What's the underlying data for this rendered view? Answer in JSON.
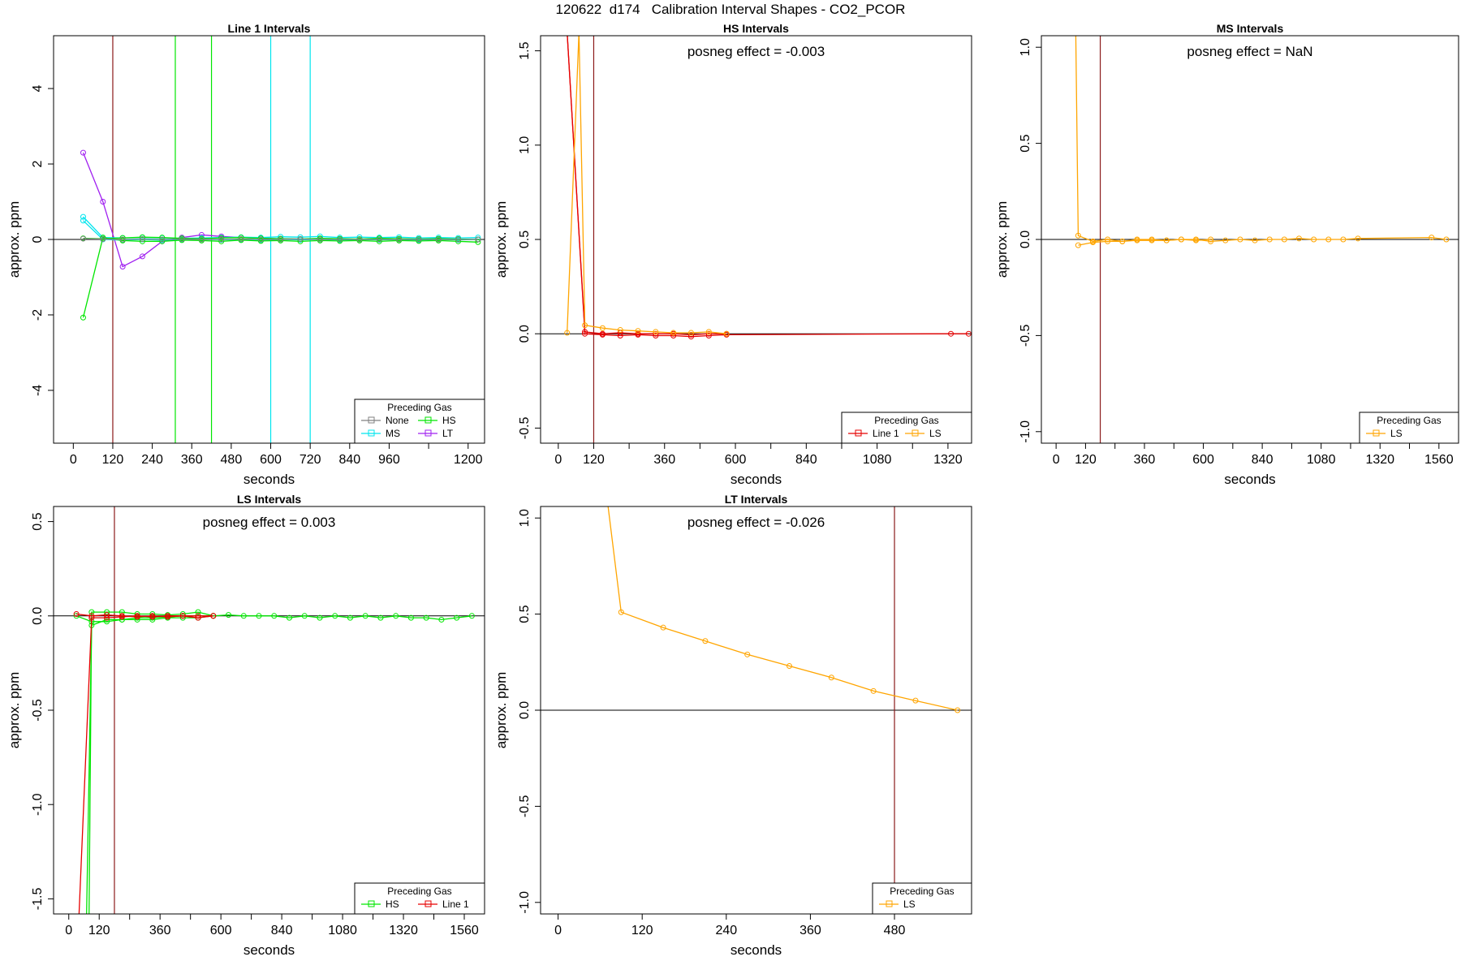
{
  "page_title": "120622  d174   Calibration Interval Shapes - CO2_PCOR",
  "colors": {
    "None": "#808080",
    "HS": "#00e600",
    "MS": "#00e5ee",
    "LT": "#a020f0",
    "LS": "#ffa500",
    "Line 1": "#e60000",
    "divider": "#8b1a1a",
    "zero_line": "#000000"
  },
  "chart_data": [
    {
      "type": "line",
      "title": "Line 1 Intervals",
      "subtitle": "",
      "xlabel": "seconds",
      "ylabel": "approx. ppm",
      "xlim": [
        -60,
        1250
      ],
      "ylim": [
        -5.4,
        5.4
      ],
      "xticks": [
        0,
        120,
        240,
        360,
        480,
        600,
        720,
        840,
        960,
        1200
      ],
      "xtick_labels": [
        "0",
        "120",
        "240",
        "360",
        "480",
        "600",
        "720",
        "840",
        "960",
        "1200"
      ],
      "xticks_minor": [
        1080
      ],
      "yticks": [
        -4,
        -2,
        0,
        2,
        4
      ],
      "ytick_labels": [
        "-4",
        "-2",
        "0",
        "2",
        "4"
      ],
      "zero_line": true,
      "legend": {
        "title": "Preceding Gas",
        "position": "bottom-right",
        "entries": [
          {
            "name": "None",
            "color": "#808080"
          },
          {
            "name": "HS",
            "color": "#00e600"
          },
          {
            "name": "MS",
            "color": "#00e5ee"
          },
          {
            "name": "LT",
            "color": "#a020f0"
          }
        ]
      },
      "vlines": [
        {
          "x": 120,
          "color": "#8b1a1a"
        },
        {
          "x": 310,
          "color": "#00e600"
        },
        {
          "x": 420,
          "color": "#00e600"
        },
        {
          "x": 600,
          "color": "#00e5ee"
        },
        {
          "x": 720,
          "color": "#00e5ee"
        }
      ],
      "series": [
        {
          "name": "LT",
          "color": "#a020f0",
          "x": [
            30,
            90,
            150,
            210,
            270,
            330,
            390,
            450,
            510,
            570,
            630,
            690,
            750,
            810,
            870,
            930,
            990,
            1050,
            1110,
            1170,
            1230
          ],
          "y": [
            2.3,
            1.0,
            -0.72,
            -0.45,
            -0.05,
            0.05,
            0.12,
            0.08,
            0.05,
            0.03,
            0.02,
            0.01,
            0.0,
            0.0,
            0.0,
            0.0,
            0.0,
            0.0,
            0.0,
            0.0,
            0.0
          ]
        },
        {
          "name": "MS",
          "color": "#00e5ee",
          "x": [
            30,
            90,
            150,
            210,
            270,
            330,
            390,
            450,
            510,
            570,
            630,
            690,
            750,
            810,
            870,
            930,
            990,
            1050,
            1110,
            1170,
            1230
          ],
          "y": [
            0.6,
            0.05,
            0.04,
            0.05,
            0.04,
            0.03,
            0.04,
            0.05,
            0.06,
            0.05,
            0.07,
            0.06,
            0.08,
            0.05,
            0.06,
            0.05,
            0.06,
            0.04,
            0.05,
            0.04,
            0.05
          ]
        },
        {
          "name": "MS",
          "color": "#00e5ee",
          "x": [
            30,
            90,
            150,
            210,
            270,
            330,
            390,
            450,
            510,
            570,
            630,
            690,
            750,
            810,
            870,
            930,
            990,
            1050,
            1110,
            1170,
            1230
          ],
          "y": [
            0.5,
            0.0,
            -0.02,
            0.0,
            -0.02,
            0.0,
            0.0,
            -0.01,
            0.0,
            -0.02,
            0.0,
            -0.01,
            0.0,
            -0.02,
            0.0,
            -0.01,
            0.0,
            -0.02,
            0.0,
            -0.01,
            0.0
          ]
        },
        {
          "name": "HS",
          "color": "#00e600",
          "x": [
            30,
            90,
            150,
            210,
            270,
            330,
            390,
            450,
            510,
            570,
            630,
            690,
            750,
            810,
            870,
            930,
            990,
            1050,
            1110,
            1170,
            1230
          ],
          "y": [
            -2.07,
            0.05,
            -0.03,
            -0.05,
            -0.05,
            -0.02,
            -0.03,
            -0.05,
            -0.02,
            -0.04,
            -0.03,
            -0.05,
            -0.03,
            -0.04,
            -0.03,
            -0.05,
            -0.03,
            -0.04,
            -0.03,
            -0.05,
            -0.07
          ]
        },
        {
          "name": "HS",
          "color": "#00e600",
          "x": [
            30,
            90,
            150,
            210,
            270,
            330,
            390,
            450,
            510,
            570,
            630,
            690,
            750,
            810,
            870,
            930,
            990,
            1050,
            1110,
            1170,
            1230
          ],
          "y": [
            0.03,
            0.02,
            0.04,
            0.06,
            0.05,
            0.03,
            0.02,
            0.04,
            0.05,
            0.03,
            0.02,
            0.01,
            0.03,
            0.02,
            0.01,
            0.03,
            0.02,
            0.01,
            0.02,
            0.01,
            0.0
          ]
        },
        {
          "name": "None",
          "color": "#808080",
          "x": [
            30,
            90,
            150,
            210,
            270,
            330,
            390,
            450,
            510,
            570,
            630,
            690,
            750,
            810,
            870,
            930,
            990,
            1050,
            1110,
            1170,
            1230
          ],
          "y": [
            0.02,
            0.01,
            0.0,
            0.01,
            0.0,
            0.01,
            0.0,
            0.0,
            0.01,
            0.0,
            0.0,
            0.01,
            0.0,
            0.0,
            0.0,
            0.0,
            0.0,
            0.0,
            0.0,
            0.0,
            0.0
          ]
        }
      ]
    },
    {
      "type": "line",
      "title": "HS Intervals",
      "subtitle": "posneg effect = -0.003",
      "xlabel": "seconds",
      "ylabel": "approx. ppm",
      "xlim": [
        -60,
        1400
      ],
      "ylim": [
        -0.58,
        1.58
      ],
      "xticks": [
        0,
        120,
        360,
        600,
        840,
        1080,
        1320
      ],
      "xtick_labels": [
        "0",
        "120",
        "360",
        "600",
        "840",
        "1080",
        "1320"
      ],
      "xticks_minor": [
        240,
        480,
        720,
        960,
        1200
      ],
      "yticks": [
        -0.5,
        0.0,
        0.5,
        1.0,
        1.5
      ],
      "ytick_labels": [
        "-0.5",
        "0.0",
        "0.5",
        "1.0",
        "1.5"
      ],
      "zero_line": true,
      "legend": {
        "title": "Preceding Gas",
        "position": "bottom-right",
        "entries": [
          {
            "name": "Line 1",
            "color": "#e60000"
          },
          {
            "name": "LS",
            "color": "#ffa500"
          }
        ]
      },
      "vlines": [
        {
          "x": 120,
          "color": "#8b1a1a"
        }
      ],
      "series": [
        {
          "name": "Line 1",
          "color": "#e60000",
          "x": [
            30,
            90,
            150,
            210,
            270,
            330,
            390,
            450,
            510,
            570,
            1330,
            1390
          ],
          "y": [
            1.6,
            0.0,
            -0.005,
            -0.01,
            -0.005,
            -0.01,
            -0.01,
            -0.015,
            -0.01,
            -0.005,
            0.0,
            0.0
          ]
        },
        {
          "name": "Line 1",
          "color": "#e60000",
          "x": [
            30,
            90,
            150,
            210,
            270,
            330,
            390,
            450,
            510,
            570
          ],
          "y": [
            1.6,
            0.01,
            0.0,
            0.005,
            0.0,
            0.0,
            0.0,
            -0.005,
            0.0,
            0.0
          ]
        },
        {
          "name": "LS",
          "color": "#ffa500",
          "x": [
            30,
            70,
            90,
            150,
            210,
            270,
            330,
            390,
            450,
            510,
            570
          ],
          "y": [
            0.005,
            1.6,
            0.045,
            0.03,
            0.02,
            0.015,
            0.01,
            0.005,
            0.005,
            0.01,
            0.0
          ]
        }
      ]
    },
    {
      "type": "line",
      "title": "MS Intervals",
      "subtitle": "posneg effect = NaN",
      "xlabel": "seconds",
      "ylabel": "approx. ppm",
      "xlim": [
        -60,
        1640
      ],
      "ylim": [
        -1.06,
        1.06
      ],
      "xticks": [
        0,
        120,
        360,
        600,
        840,
        1080,
        1320,
        1560
      ],
      "xtick_labels": [
        "0",
        "120",
        "360",
        "600",
        "840",
        "1080",
        "1320",
        "1560"
      ],
      "xticks_minor": [
        240,
        480,
        720,
        960,
        1200,
        1440
      ],
      "yticks": [
        -1.0,
        -0.5,
        0.0,
        0.5,
        1.0
      ],
      "ytick_labels": [
        "-1.0",
        "-0.5",
        "0.0",
        "0.5",
        "1.0"
      ],
      "zero_line": true,
      "legend": {
        "title": "Preceding Gas",
        "position": "bottom-right",
        "entries": [
          {
            "name": "LS",
            "color": "#ffa500"
          }
        ]
      },
      "vlines": [
        {
          "x": 180,
          "color": "#8b1a1a"
        }
      ],
      "series": [
        {
          "name": "LS",
          "color": "#ffa500",
          "x": [
            80,
            90,
            150,
            210,
            270,
            330,
            390,
            450,
            510,
            570,
            630,
            690,
            750,
            810,
            870,
            930,
            990,
            1050,
            1110,
            1170,
            1230,
            1530,
            1590
          ],
          "y": [
            1.1,
            0.02,
            -0.01,
            0.0,
            -0.01,
            0.0,
            0.0,
            -0.005,
            0.0,
            0.0,
            -0.01,
            -0.005,
            0.0,
            -0.005,
            0.0,
            0.0,
            0.005,
            0.0,
            0.0,
            0.0,
            0.005,
            0.01,
            0.0
          ]
        },
        {
          "name": "LS",
          "color": "#ffa500",
          "x": [
            90,
            150,
            210,
            270,
            330,
            390,
            450,
            510,
            570,
            630
          ],
          "y": [
            -0.03,
            -0.015,
            -0.01,
            -0.01,
            -0.005,
            -0.005,
            -0.005,
            0.0,
            -0.005,
            0.0
          ]
        }
      ]
    },
    {
      "type": "line",
      "title": "LS Intervals",
      "subtitle": "posneg effect = 0.003",
      "xlabel": "seconds",
      "ylabel": "approx. ppm",
      "xlim": [
        -60,
        1640
      ],
      "ylim": [
        -1.58,
        0.58
      ],
      "xticks": [
        0,
        120,
        360,
        600,
        840,
        1080,
        1320,
        1560
      ],
      "xtick_labels": [
        "0",
        "120",
        "360",
        "600",
        "840",
        "1080",
        "1320",
        "1560"
      ],
      "xticks_minor": [
        240,
        480,
        720,
        960,
        1200,
        1440
      ],
      "yticks": [
        -1.5,
        -1.0,
        -0.5,
        0.0,
        0.5
      ],
      "ytick_labels": [
        "-1.5",
        "-1.0",
        "-0.5",
        "0.0",
        "0.5"
      ],
      "zero_line": true,
      "legend": {
        "title": "Preceding Gas",
        "position": "bottom-right",
        "entries": [
          {
            "name": "HS",
            "color": "#00e600"
          },
          {
            "name": "Line 1",
            "color": "#e60000"
          }
        ]
      },
      "vlines": [
        {
          "x": 180,
          "color": "#8b1a1a"
        }
      ],
      "series": [
        {
          "name": "HS",
          "color": "#00e600",
          "x": [
            70,
            90,
            150,
            210,
            270,
            330,
            390,
            450,
            510,
            570,
            630,
            690,
            750,
            810,
            870,
            930,
            990,
            1050,
            1110,
            1170,
            1230,
            1290,
            1350,
            1410,
            1470,
            1530,
            1590
          ],
          "y": [
            -1.6,
            -0.05,
            -0.02,
            -0.02,
            -0.01,
            -0.01,
            -0.005,
            0.0,
            0.0,
            0.0,
            0.005,
            0.0,
            0.0,
            0.0,
            -0.01,
            0.0,
            -0.01,
            0.0,
            -0.01,
            0.0,
            -0.01,
            0.0,
            -0.01,
            -0.01,
            -0.02,
            -0.01,
            0.0
          ]
        },
        {
          "name": "HS",
          "color": "#00e600",
          "x": [
            80,
            90,
            150,
            210,
            270,
            330,
            390,
            450,
            510,
            570
          ],
          "y": [
            -1.6,
            0.02,
            0.02,
            0.02,
            0.01,
            0.01,
            0.005,
            0.01,
            0.02,
            0.0
          ]
        },
        {
          "name": "HS",
          "color": "#00e600",
          "x": [
            30,
            90,
            150,
            210,
            270,
            330,
            390,
            450,
            510,
            570
          ],
          "y": [
            0.0,
            -0.03,
            -0.03,
            -0.02,
            -0.02,
            -0.02,
            -0.01,
            -0.01,
            -0.01,
            0.0
          ]
        },
        {
          "name": "Line 1",
          "color": "#e60000",
          "x": [
            40,
            90,
            150,
            210,
            270,
            330,
            390,
            450,
            510,
            570
          ],
          "y": [
            -1.6,
            -0.01,
            -0.01,
            -0.005,
            0.0,
            -0.005,
            0.0,
            0.0,
            0.0,
            0.0
          ]
        },
        {
          "name": "Line 1",
          "color": "#e60000",
          "x": [
            30,
            90,
            150,
            210,
            270,
            330,
            390,
            450,
            510,
            570
          ],
          "y": [
            0.01,
            0.0,
            0.005,
            0.0,
            -0.005,
            0.0,
            -0.005,
            0.0,
            -0.01,
            0.0
          ]
        }
      ]
    },
    {
      "type": "line",
      "title": "LT Intervals",
      "subtitle": "posneg effect = -0.026",
      "xlabel": "seconds",
      "ylabel": "approx. ppm",
      "xlim": [
        -25,
        590
      ],
      "ylim": [
        -1.06,
        1.06
      ],
      "xticks": [
        0,
        120,
        240,
        360,
        480
      ],
      "xtick_labels": [
        "0",
        "120",
        "240",
        "360",
        "480"
      ],
      "xticks_minor": [],
      "yticks": [
        -1.0,
        -0.5,
        0.0,
        0.5,
        1.0
      ],
      "ytick_labels": [
        "-1.0",
        "-0.5",
        "0.0",
        "0.5",
        "1.0"
      ],
      "zero_line": true,
      "legend": {
        "title": "Preceding Gas",
        "position": "bottom-right",
        "entries": [
          {
            "name": "LS",
            "color": "#ffa500"
          }
        ]
      },
      "vlines": [
        {
          "x": 480,
          "color": "#8b1a1a"
        }
      ],
      "series": [
        {
          "name": "LS",
          "color": "#ffa500",
          "x": [
            70,
            90,
            150,
            210,
            270,
            330,
            390,
            450,
            510,
            570
          ],
          "y": [
            1.1,
            0.51,
            0.43,
            0.36,
            0.29,
            0.23,
            0.17,
            0.1,
            0.05,
            0.0
          ]
        }
      ]
    }
  ]
}
